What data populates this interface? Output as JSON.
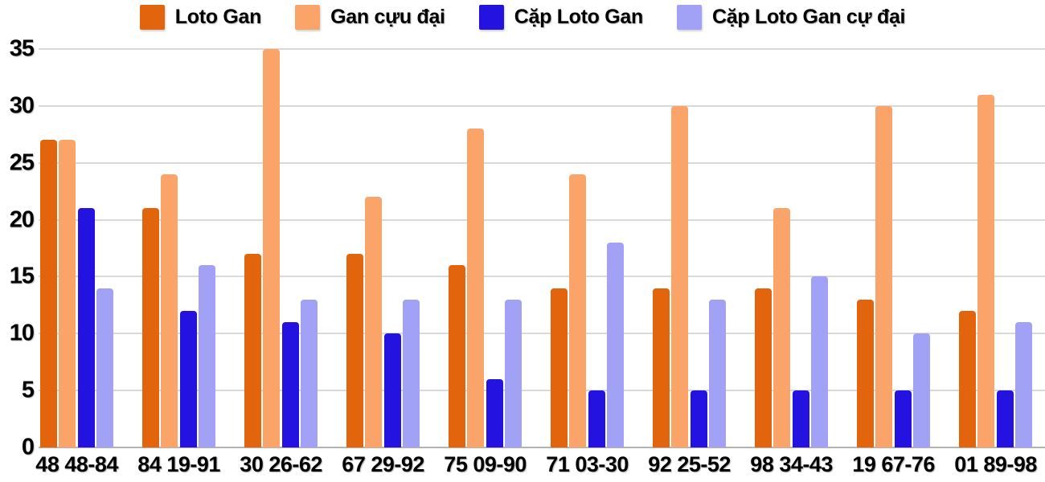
{
  "chart_data": {
    "type": "bar",
    "title": "",
    "xlabel": "",
    "ylabel": "",
    "categories": [
      "48 48-84",
      "84 19-91",
      "30 26-62",
      "67 29-92",
      "75 09-90",
      "71 03-30",
      "92 25-52",
      "98 34-43",
      "19 67-76",
      "01 89-98"
    ],
    "series": [
      {
        "name": "Loto Gan",
        "color": "#e2650e",
        "values": [
          27,
          21,
          17,
          17,
          16,
          14,
          14,
          14,
          13,
          12
        ]
      },
      {
        "name": "Gan cựu đại",
        "color": "#fba469",
        "values": [
          27,
          24,
          35,
          22,
          28,
          24,
          30,
          21,
          30,
          31
        ]
      },
      {
        "name": "Cặp Loto Gan",
        "color": "#2412e0",
        "values": [
          21,
          12,
          11,
          10,
          6,
          5,
          5,
          5,
          5,
          5
        ]
      },
      {
        "name": "Cặp Loto Gan cự đại",
        "color": "#a1a1f5",
        "values": [
          14,
          16,
          13,
          13,
          13,
          18,
          13,
          15,
          10,
          11
        ]
      }
    ],
    "ylim": [
      0,
      35
    ],
    "yticks": [
      0,
      5,
      10,
      15,
      20,
      25,
      30,
      35
    ],
    "grid": true,
    "legend_position": "top",
    "colors": {
      "background": "#ffffff",
      "gridline": "#d9d9d9",
      "baseline": "#b3b3b3",
      "text": "#000000"
    }
  }
}
